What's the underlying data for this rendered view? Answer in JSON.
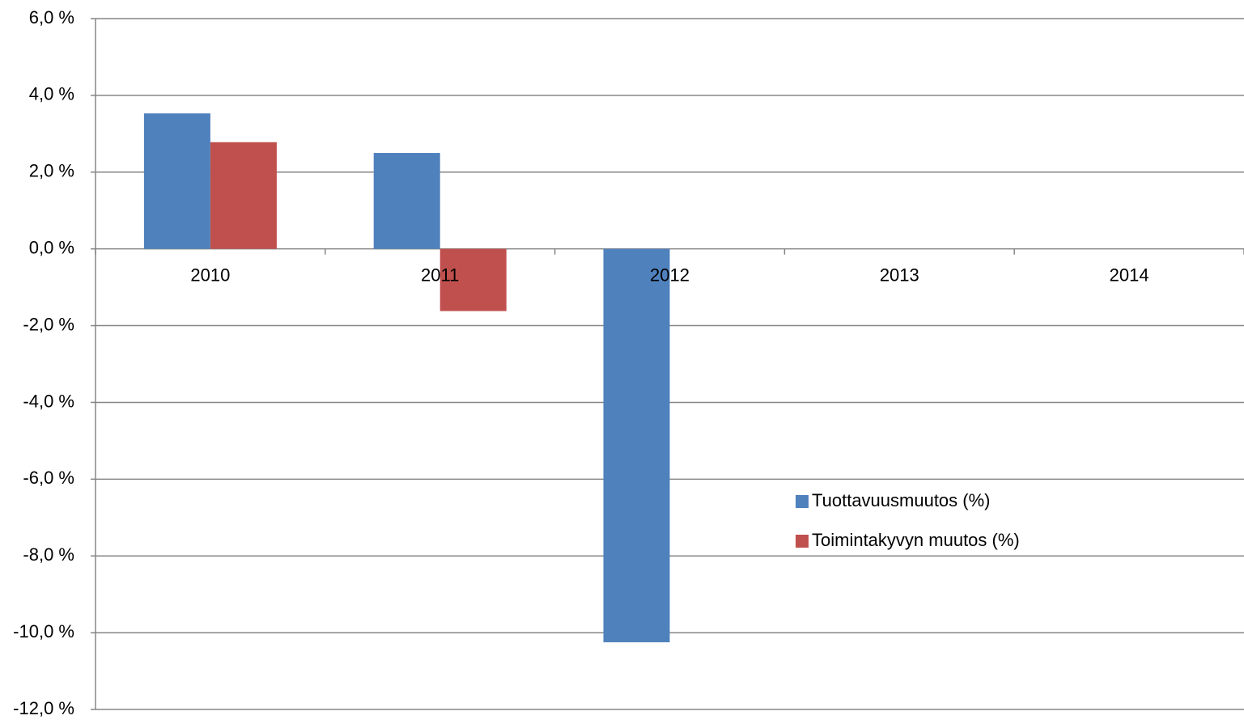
{
  "chart_data": {
    "type": "bar",
    "categories": [
      "2010",
      "2011",
      "2012",
      "2013",
      "2014"
    ],
    "series": [
      {
        "name": "Tuottavuusmuutos (%)",
        "color": "#4f81bd",
        "values": [
          3.53,
          2.5,
          -10.25,
          null,
          null
        ]
      },
      {
        "name": "Toimintakyvyn muutos (%)",
        "color": "#c0504d",
        "values": [
          2.78,
          -1.62,
          null,
          null,
          null
        ]
      }
    ],
    "ylim": [
      -12,
      6
    ],
    "yticks": [
      {
        "value": -12,
        "label": "-12,0 %"
      },
      {
        "value": -10,
        "label": "-10,0 %"
      },
      {
        "value": -8,
        "label": "-8,0 %"
      },
      {
        "value": -6,
        "label": "-6,0 %"
      },
      {
        "value": -4,
        "label": "-4,0 %"
      },
      {
        "value": -2,
        "label": "-2,0 %"
      },
      {
        "value": 0,
        "label": "0,0 %"
      },
      {
        "value": 2,
        "label": "2,0 %"
      },
      {
        "value": 4,
        "label": "4,0 %"
      },
      {
        "value": 6,
        "label": "6,0 %"
      }
    ],
    "grid": true,
    "legend_position": "right"
  }
}
